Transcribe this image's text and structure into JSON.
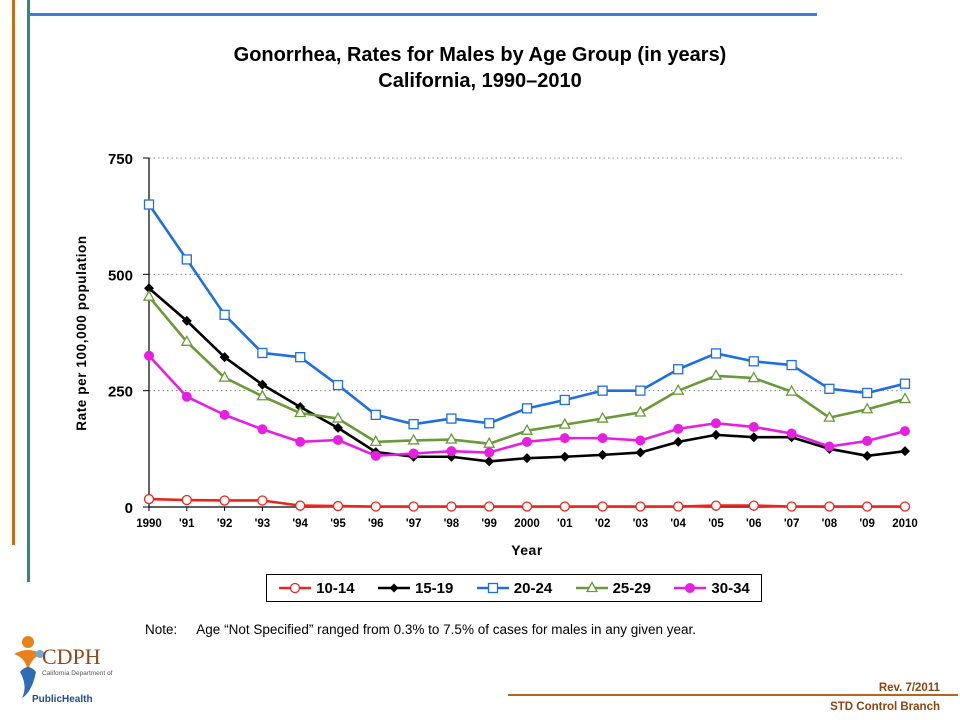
{
  "title": {
    "line1": "Gonorrhea, Rates for Males by Age Group (in years)",
    "line2": "California, 1990–2010"
  },
  "note": {
    "prefix": "Note:",
    "text": "Age “Not Specified” ranged from 0.3% to 7.5% of cases for males in any given year."
  },
  "footer": {
    "revision": "Rev. 7/2011",
    "branch": "STD Control Branch"
  },
  "logo": {
    "name": "CDPH",
    "subtitle": "California Department of",
    "public_health": "PublicHealth"
  },
  "colors": {
    "top_rule": "#3B7DD8",
    "left_rule_orange": "#C0701A",
    "left_rule_teal": "#2E8B7A",
    "bottom_rule": "#B5651D"
  },
  "chart_data": {
    "type": "line",
    "xlabel": "Year",
    "ylabel": "Rate per 100,000 population",
    "ylim": [
      0,
      750
    ],
    "yticks": [
      "0",
      "250",
      "500",
      "750"
    ],
    "grid": "horizontal dotted",
    "legend_position": "bottom",
    "categories": [
      "1990",
      "'91",
      "'92",
      "'93",
      "'94",
      "'95",
      "'96",
      "'97",
      "'98",
      "'99",
      "2000",
      "'01",
      "'02",
      "'03",
      "'04",
      "'05",
      "'06",
      "'07",
      "'08",
      "'09",
      "2010"
    ],
    "series": [
      {
        "name": "10-14",
        "color": "#E8251F",
        "marker": "circle-open",
        "values": [
          17,
          15,
          14,
          14,
          3,
          2,
          1,
          1,
          1,
          1,
          1,
          1,
          1,
          1,
          1,
          3,
          3,
          1,
          1,
          1,
          1
        ]
      },
      {
        "name": "15-19",
        "color": "#000000",
        "marker": "diamond-filled",
        "values": [
          470,
          400,
          322,
          263,
          215,
          170,
          118,
          108,
          108,
          98,
          105,
          108,
          112,
          117,
          140,
          155,
          150,
          150,
          125,
          110,
          120
        ]
      },
      {
        "name": "20-24",
        "color": "#1F6FE0",
        "marker": "square-open",
        "values": [
          650,
          532,
          413,
          331,
          322,
          262,
          198,
          178,
          190,
          180,
          212,
          230,
          250,
          250,
          296,
          330,
          313,
          305,
          254,
          245,
          265
        ]
      },
      {
        "name": "25-29",
        "color": "#6A9A3A",
        "marker": "triangle-open",
        "values": [
          452,
          355,
          278,
          238,
          202,
          190,
          140,
          143,
          145,
          136,
          164,
          177,
          190,
          203,
          250,
          282,
          277,
          248,
          192,
          210,
          232
        ]
      },
      {
        "name": "30-34",
        "color": "#E620E0",
        "marker": "circle-filled",
        "values": [
          325,
          237,
          198,
          167,
          140,
          144,
          110,
          115,
          120,
          117,
          140,
          148,
          148,
          143,
          168,
          180,
          172,
          158,
          130,
          142,
          163
        ]
      }
    ]
  }
}
